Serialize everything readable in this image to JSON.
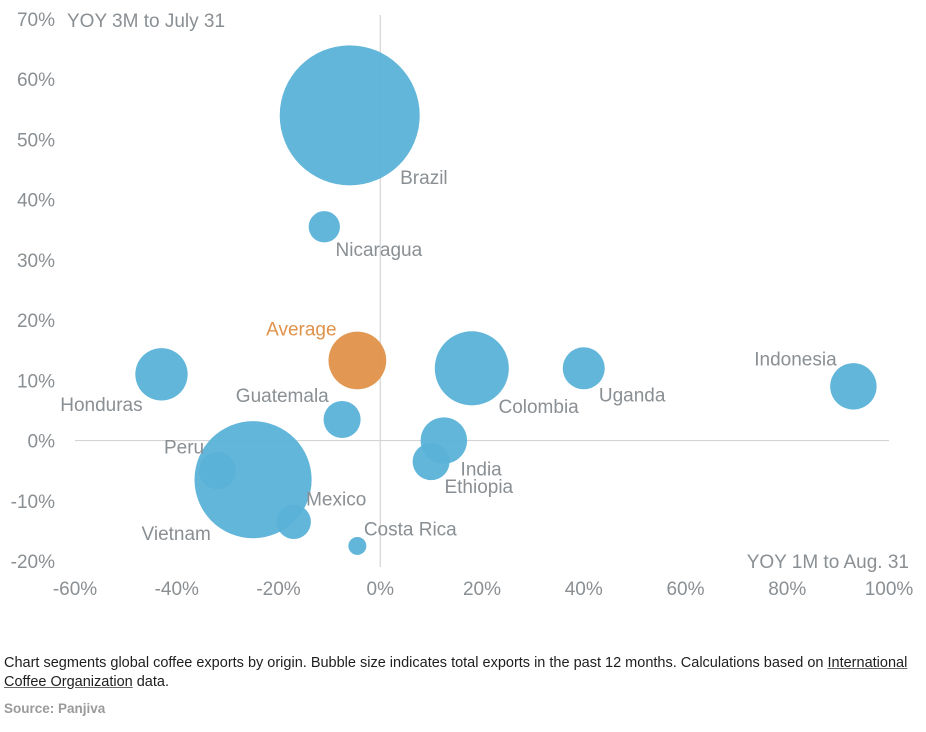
{
  "chart_data": {
    "type": "scatter",
    "subtype": "bubble",
    "title": "",
    "xlabel": "YOY 1M to Aug. 31",
    "ylabel": "YOY 3M to July 31",
    "xlim": [
      -60,
      100
    ],
    "ylim": [
      -20,
      70
    ],
    "x_ticks": [
      -60,
      -40,
      -20,
      0,
      20,
      40,
      60,
      80,
      100
    ],
    "y_ticks": [
      -20,
      -10,
      0,
      10,
      20,
      30,
      40,
      50,
      60,
      70
    ],
    "x_tick_labels": [
      "-60%",
      "-40%",
      "-20%",
      "0%",
      "20%",
      "40%",
      "60%",
      "80%",
      "100%"
    ],
    "y_tick_labels": [
      "-20%",
      "-10%",
      "0%",
      "10%",
      "20%",
      "30%",
      "40%",
      "50%",
      "60%",
      "70%"
    ],
    "colors": {
      "origin": "#5ab2d8",
      "average": "#e0924a",
      "label": "#8a8f93",
      "average_label": "#e0924a"
    },
    "points": [
      {
        "name": "Brazil",
        "x": -6,
        "y": 54,
        "size": 100,
        "label_anchor": "below-right"
      },
      {
        "name": "Vietnam",
        "x": -25,
        "y": -6.5,
        "size": 70,
        "label_anchor": "below-left"
      },
      {
        "name": "Colombia",
        "x": 18,
        "y": 12,
        "size": 28,
        "label_anchor": "below-right"
      },
      {
        "name": "Honduras",
        "x": -43,
        "y": 11,
        "size": 14,
        "label_anchor": "below-left"
      },
      {
        "name": "Indonesia",
        "x": 93,
        "y": 9,
        "size": 11,
        "label_anchor": "above-left"
      },
      {
        "name": "India",
        "x": 12.5,
        "y": 0,
        "size": 11,
        "label_anchor": "below-right"
      },
      {
        "name": "Uganda",
        "x": 40,
        "y": 12,
        "size": 9,
        "label_anchor": "below-right"
      },
      {
        "name": "Ethiopia",
        "x": 10,
        "y": -3.5,
        "size": 7,
        "label_anchor": "below-right"
      },
      {
        "name": "Guatemala",
        "x": -7.5,
        "y": 3.5,
        "size": 7,
        "label_anchor": "above-left"
      },
      {
        "name": "Peru",
        "x": -32,
        "y": -5,
        "size": 7,
        "label_anchor": "above-left"
      },
      {
        "name": "Mexico",
        "x": -17,
        "y": -13.5,
        "size": 6,
        "label_anchor": "above-right"
      },
      {
        "name": "Nicaragua",
        "x": -11,
        "y": 35.5,
        "size": 5,
        "label_anchor": "below-right"
      },
      {
        "name": "Costa Rica",
        "x": -4.5,
        "y": -17.5,
        "size": 1,
        "label_anchor": "above-right"
      },
      {
        "name": "Average",
        "x": -4.5,
        "y": 13.3,
        "size": 17,
        "label_anchor": "above-left",
        "is_average": true
      }
    ]
  },
  "caption": {
    "text_before": "Chart segments global coffee exports by origin. Bubble size indicates total exports in the past 12 months. Calculations based on ",
    "link": "International Coffee Organization",
    "text_after": " data."
  },
  "source": "Source: Panjiva"
}
